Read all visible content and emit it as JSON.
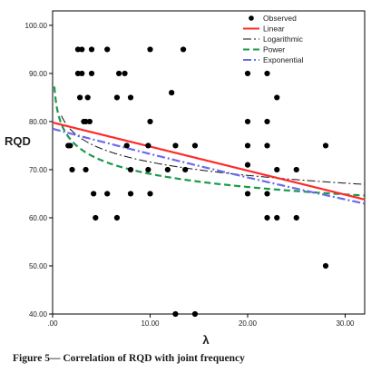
{
  "caption": "Figure 5— Correlation of RQD with joint frequency",
  "chart_data": {
    "type": "scatter",
    "title": "",
    "xlabel": "λ",
    "ylabel": "RQD",
    "xlim": [
      0,
      32
    ],
    "ylim": [
      40,
      103
    ],
    "xticks": [
      0,
      10,
      20,
      30
    ],
    "xtick_labels": [
      ".00",
      "10.00",
      "20.00",
      "30.00"
    ],
    "yticks": [
      40,
      50,
      60,
      70,
      80,
      90,
      100
    ],
    "ytick_labels": [
      "40.00",
      "50.00",
      "60.00",
      "70.00",
      "80.00",
      "90.00",
      "100.00"
    ],
    "grid": false,
    "legend_position": "top-right",
    "legend": [
      {
        "key": "observed",
        "label": "Observed",
        "marker": "dot",
        "color": "#000000"
      },
      {
        "key": "linear",
        "label": "Linear",
        "color": "#ff2a2a",
        "dash": "solid"
      },
      {
        "key": "logarithmic",
        "label": "Logarithmic",
        "color": "#111111",
        "dash": "dashdot"
      },
      {
        "key": "power",
        "label": "Power",
        "color": "#1a9a4a",
        "dash": "dashed"
      },
      {
        "key": "exponential",
        "label": "Exponential",
        "color": "#6a6aee",
        "dash": "dashdot"
      }
    ],
    "observed": [
      [
        1.6,
        75
      ],
      [
        1.8,
        75
      ],
      [
        2.0,
        70
      ],
      [
        2.6,
        90
      ],
      [
        2.6,
        95
      ],
      [
        2.8,
        85
      ],
      [
        3.0,
        95
      ],
      [
        3.0,
        90
      ],
      [
        3.2,
        80
      ],
      [
        3.4,
        80
      ],
      [
        3.4,
        70
      ],
      [
        3.6,
        85
      ],
      [
        3.8,
        80
      ],
      [
        4.0,
        95
      ],
      [
        4.0,
        90
      ],
      [
        4.2,
        65
      ],
      [
        4.4,
        60
      ],
      [
        5.6,
        95
      ],
      [
        5.6,
        65
      ],
      [
        6.6,
        60
      ],
      [
        6.6,
        85
      ],
      [
        6.8,
        90
      ],
      [
        7.4,
        90
      ],
      [
        7.6,
        75
      ],
      [
        8.0,
        85
      ],
      [
        8.0,
        70
      ],
      [
        8.0,
        65
      ],
      [
        9.8,
        70
      ],
      [
        9.8,
        75
      ],
      [
        10.0,
        95
      ],
      [
        10.0,
        80
      ],
      [
        10.0,
        65
      ],
      [
        11.8,
        70
      ],
      [
        12.2,
        86
      ],
      [
        12.6,
        75
      ],
      [
        12.6,
        40
      ],
      [
        13.4,
        95
      ],
      [
        13.6,
        70
      ],
      [
        14.6,
        75
      ],
      [
        14.6,
        40
      ],
      [
        20.0,
        90
      ],
      [
        20.0,
        80
      ],
      [
        20.0,
        75
      ],
      [
        20.0,
        71
      ],
      [
        20.0,
        65
      ],
      [
        22.0,
        90
      ],
      [
        22.0,
        80
      ],
      [
        22.0,
        75
      ],
      [
        22.0,
        65
      ],
      [
        22.0,
        60
      ],
      [
        23.0,
        85
      ],
      [
        23.0,
        70
      ],
      [
        23.0,
        60
      ],
      [
        25.0,
        70
      ],
      [
        25.0,
        60
      ],
      [
        28.0,
        75
      ],
      [
        28.0,
        50
      ]
    ],
    "fits": {
      "linear": {
        "intercept": 79.8,
        "slope": -0.5
      },
      "logarithmic": {
        "a": 80.8,
        "b": -4.0
      },
      "power": {
        "a": 79.0,
        "b": -0.058
      },
      "exponential": {
        "a": 78.5,
        "b": -0.0069
      }
    }
  }
}
